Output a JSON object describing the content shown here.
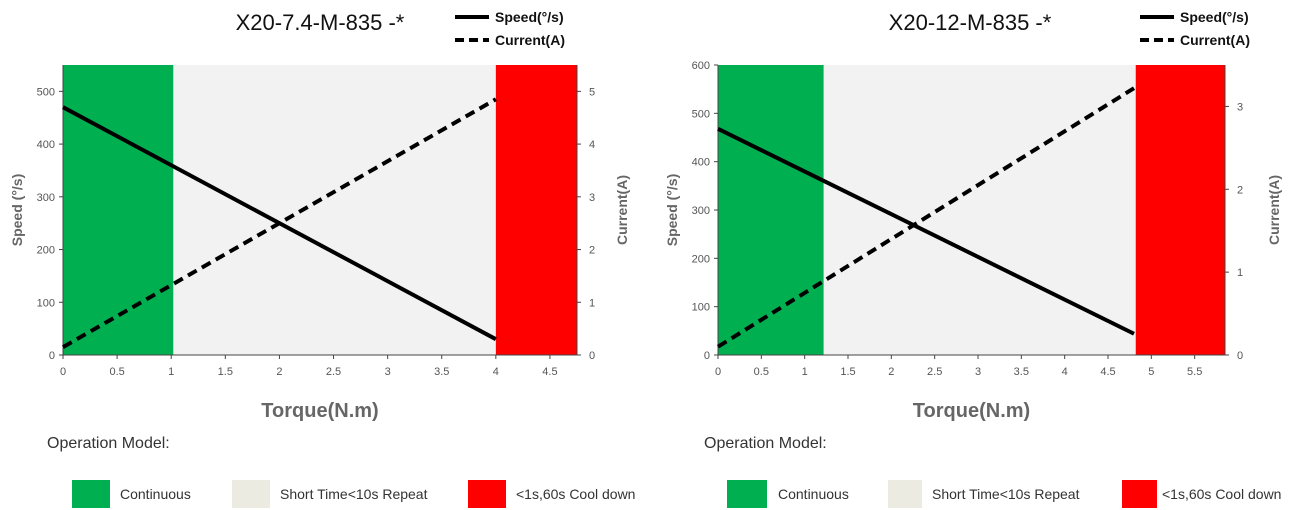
{
  "chart_data": [
    {
      "type": "line",
      "title": "X20-7.4-M-835 -*",
      "xlabel": "Torque(N.m)",
      "ylabel": "Speed (°/s)",
      "y2label": "Current(A)",
      "xlim": [
        0,
        4.75
      ],
      "ylim": [
        0,
        550
      ],
      "y2lim": [
        0,
        5.5
      ],
      "xticks": [
        "0",
        "0.5",
        "1",
        "1.5",
        "2",
        "2.5",
        "3",
        "3.5",
        "4",
        "4.5"
      ],
      "yticks": [
        "0",
        "100",
        "200",
        "300",
        "400",
        "500"
      ],
      "y2ticks": [
        "0",
        "1",
        "2",
        "3",
        "4",
        "5"
      ],
      "series": [
        {
          "name": "Speed(°/s)",
          "axis": "left",
          "style": "solid",
          "x": [
            0,
            4
          ],
          "y": [
            470,
            30
          ]
        },
        {
          "name": "Current(A)",
          "axis": "right",
          "style": "dashed",
          "x": [
            0,
            4
          ],
          "y": [
            0.15,
            4.85
          ]
        }
      ],
      "regions": [
        {
          "label": "Continuous",
          "x0": 0,
          "x1": 1.02,
          "color": "#00b050"
        },
        {
          "label": "Short Time<10s Repeat",
          "x0": 1.02,
          "x1": 4.0,
          "color": "#f2f2f2"
        },
        {
          "label": "<1s,60s Cool down",
          "x0": 4.0,
          "x1": 4.75,
          "color": "#ff0000"
        }
      ]
    },
    {
      "type": "line",
      "title": "X20-12-M-835 -*",
      "xlabel": "Torque(N.m)",
      "ylabel": "Speed (°/s)",
      "y2label": "Current(A)",
      "xlim": [
        0,
        5.85
      ],
      "ylim": [
        0,
        600
      ],
      "y2lim": [
        0,
        3.5
      ],
      "xticks": [
        "0",
        "0.5",
        "1",
        "1.5",
        "2",
        "2.5",
        "3",
        "3.5",
        "4",
        "4.5",
        "5",
        "5.5"
      ],
      "yticks": [
        "0",
        "100",
        "200",
        "300",
        "400",
        "500",
        "600"
      ],
      "y2ticks": [
        "0",
        "1",
        "2",
        "3"
      ],
      "series": [
        {
          "name": "Speed(°/s)",
          "axis": "left",
          "style": "solid",
          "x": [
            0,
            4.8
          ],
          "y": [
            468,
            44
          ]
        },
        {
          "name": "Current(A)",
          "axis": "right",
          "style": "dashed",
          "x": [
            0,
            4.8
          ],
          "y": [
            0.1,
            3.22
          ]
        }
      ],
      "regions": [
        {
          "label": "Continuous",
          "x0": 0,
          "x1": 1.22,
          "color": "#00b050"
        },
        {
          "label": "Short Time<10s Repeat",
          "x0": 1.22,
          "x1": 4.82,
          "color": "#f2f2f2"
        },
        {
          "label": "<1s,60s Cool down",
          "x0": 4.82,
          "x1": 5.85,
          "color": "#ff0000"
        }
      ]
    }
  ],
  "operation_model": {
    "heading": "Operation Model:",
    "items": [
      {
        "label": "Continuous",
        "color": "#00b050"
      },
      {
        "label": "Short Time<10s Repeat",
        "color": "#ecebe1"
      },
      {
        "label": "<1s,60s Cool down",
        "color": "#ff0000"
      }
    ]
  }
}
